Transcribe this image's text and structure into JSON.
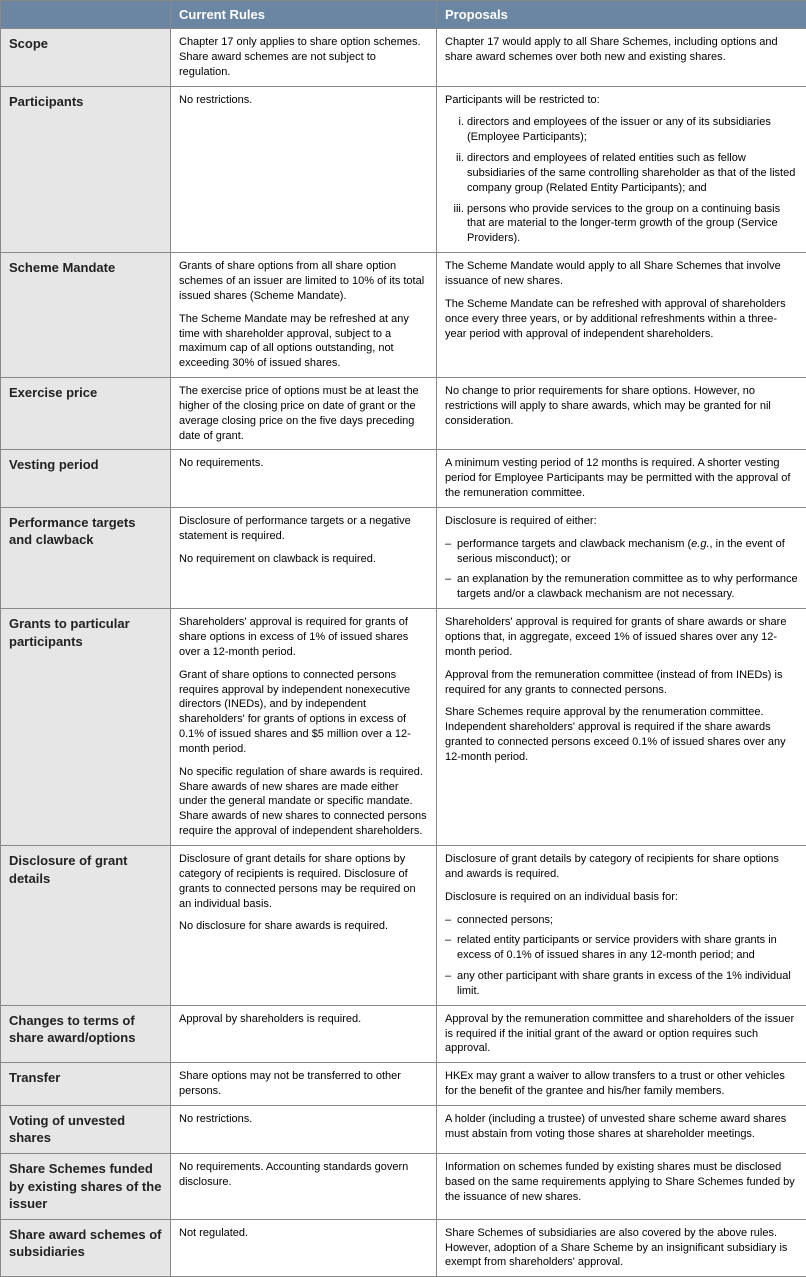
{
  "colors": {
    "header_bg": "#6a86a3",
    "header_text": "#ffffff",
    "rowhdr_bg": "#e6e6e6",
    "border": "#888888",
    "text": "#000000"
  },
  "headers": {
    "col0": "",
    "col1": "Current Rules",
    "col2": "Proposals"
  },
  "rows": [
    {
      "label": "Scope",
      "current": [
        {
          "type": "p",
          "text": "Chapter 17 only applies to share option schemes. Share award schemes are not subject to regulation."
        }
      ],
      "proposals": [
        {
          "type": "p",
          "text": "Chapter 17 would apply to all Share Schemes, including options and share award schemes over both new and existing shares."
        }
      ]
    },
    {
      "label": "Participants",
      "current": [
        {
          "type": "p",
          "text": "No restrictions."
        }
      ],
      "proposals": [
        {
          "type": "p",
          "text": "Participants will be restricted to:"
        },
        {
          "type": "ol",
          "items": [
            "directors and employees of the issuer or any of its subsidiaries (Employee Participants);",
            "directors and employees of related entities such as fellow subsidiaries of the same controlling shareholder as that of the listed company group (Related Entity Participants); and",
            "persons who provide services to the group on a continuing basis that are material to the longer-term growth of the group (Service Providers)."
          ]
        }
      ]
    },
    {
      "label": "Scheme Mandate",
      "current": [
        {
          "type": "p",
          "text": "Grants of share options from all share option schemes of an issuer are limited to 10% of its total issued shares (Scheme Mandate)."
        },
        {
          "type": "p",
          "text": "The Scheme Mandate may be refreshed at any time with shareholder approval, subject to a maximum cap of all options outstanding, not exceeding 30% of issued shares."
        }
      ],
      "proposals": [
        {
          "type": "p",
          "text": "The Scheme Mandate would apply to all Share Schemes that involve issuance of new shares."
        },
        {
          "type": "p",
          "text": "The Scheme Mandate can be refreshed with approval of shareholders once every three years, or by additional refreshments within a three-year period with approval of independent shareholders."
        }
      ]
    },
    {
      "label": "Exercise price",
      "current": [
        {
          "type": "p",
          "text": "The exercise price of options must be at least the higher of the closing price on date of grant or the average closing price on the five days preceding date of grant."
        }
      ],
      "proposals": [
        {
          "type": "p",
          "text": "No change to prior requirements for share options. However, no restrictions will apply to share awards, which may be granted for nil consideration."
        }
      ]
    },
    {
      "label": "Vesting period",
      "current": [
        {
          "type": "p",
          "text": "No requirements."
        }
      ],
      "proposals": [
        {
          "type": "p",
          "text": "A minimum vesting period of 12 months is required. A shorter vesting period for Employee Participants may be permitted with the approval of the remuneration committee."
        }
      ]
    },
    {
      "label": "Performance targets and clawback",
      "current": [
        {
          "type": "p",
          "text": "Disclosure of performance targets or a negative statement is required."
        },
        {
          "type": "p",
          "text": "No requirement on clawback is required."
        }
      ],
      "proposals": [
        {
          "type": "p",
          "text": "Disclosure is required of either:"
        },
        {
          "type": "ul",
          "items": [
            "performance targets and clawback mechanism (e.g., in the event of serious misconduct); or",
            "an explanation by the remuneration committee as to why performance targets and/or a clawback mechanism are not necessary."
          ]
        }
      ]
    },
    {
      "label": "Grants to particular participants",
      "current": [
        {
          "type": "p",
          "text": "Shareholders' approval is required for grants of share options in excess of 1% of issued shares over a 12-month period."
        },
        {
          "type": "p",
          "text": "Grant of share options to connected persons requires approval by independent nonexecutive directors (INEDs), and by independent shareholders' for grants of options in excess of 0.1% of issued shares and $5 million over a 12-month period."
        },
        {
          "type": "p",
          "text": "No specific regulation of share awards is required. Share awards of new shares are made either under the general mandate or specific mandate. Share awards of new shares to connected persons require the approval of independent shareholders."
        }
      ],
      "proposals": [
        {
          "type": "p",
          "text": "Shareholders' approval is required for grants of share awards or share options that, in aggregate, exceed 1% of issued shares over any 12-month period."
        },
        {
          "type": "p",
          "text": "Approval from the remuneration committee (instead of from INEDs) is required for any grants to connected persons."
        },
        {
          "type": "p",
          "text": "Share Schemes require approval by the renumeration committee. Independent shareholders' approval is required if the share awards granted to connected persons exceed 0.1% of issued shares over any 12-month period."
        }
      ]
    },
    {
      "label": "Disclosure of grant details",
      "current": [
        {
          "type": "p",
          "text": "Disclosure of grant details for share options by category of recipients is required. Disclosure of grants to connected persons may be required on an individual basis."
        },
        {
          "type": "p",
          "text": "No disclosure for share awards is required."
        }
      ],
      "proposals": [
        {
          "type": "p",
          "text": "Disclosure of grant details by category of recipients for share options and awards is required."
        },
        {
          "type": "p",
          "text": "Disclosure is required on an individual basis for:"
        },
        {
          "type": "ul",
          "items": [
            "connected persons;",
            "related entity participants or service providers with share grants in excess of 0.1% of issued shares in any 12-month period; and",
            "any other participant with share grants in excess of the 1% individual limit."
          ]
        }
      ]
    },
    {
      "label": "Changes to terms of share award/options",
      "current": [
        {
          "type": "p",
          "text": "Approval by shareholders is required."
        }
      ],
      "proposals": [
        {
          "type": "p",
          "text": "Approval by the remuneration committee and shareholders of the issuer is required if the initial grant of the award or option requires such approval."
        }
      ]
    },
    {
      "label": "Transfer",
      "current": [
        {
          "type": "p",
          "text": "Share options may not be transferred to other persons."
        }
      ],
      "proposals": [
        {
          "type": "p",
          "text": "HKEx may grant a waiver to allow transfers to a trust or other vehicles for the benefit of the grantee and his/her family members."
        }
      ]
    },
    {
      "label": "Voting of unvested shares",
      "current": [
        {
          "type": "p",
          "text": "No restrictions."
        }
      ],
      "proposals": [
        {
          "type": "p",
          "text": "A holder (including a trustee) of unvested share scheme award shares must abstain from voting those shares at shareholder meetings."
        }
      ]
    },
    {
      "label": "Share Schemes funded by existing shares of the issuer",
      "current": [
        {
          "type": "p",
          "text": "No requirements. Accounting standards govern disclosure."
        }
      ],
      "proposals": [
        {
          "type": "p",
          "text": "Information on schemes funded by existing shares must be disclosed based on the same requirements applying to Share Schemes funded by the issuance of new shares."
        }
      ]
    },
    {
      "label": "Share award schemes of subsidiaries",
      "current": [
        {
          "type": "p",
          "text": "Not regulated."
        }
      ],
      "proposals": [
        {
          "type": "p",
          "text": "Share Schemes of subsidiaries are also covered by the above rules. However, adoption of a Share Scheme by an insignificant subsidiary is exempt from shareholders' approval."
        }
      ]
    }
  ]
}
